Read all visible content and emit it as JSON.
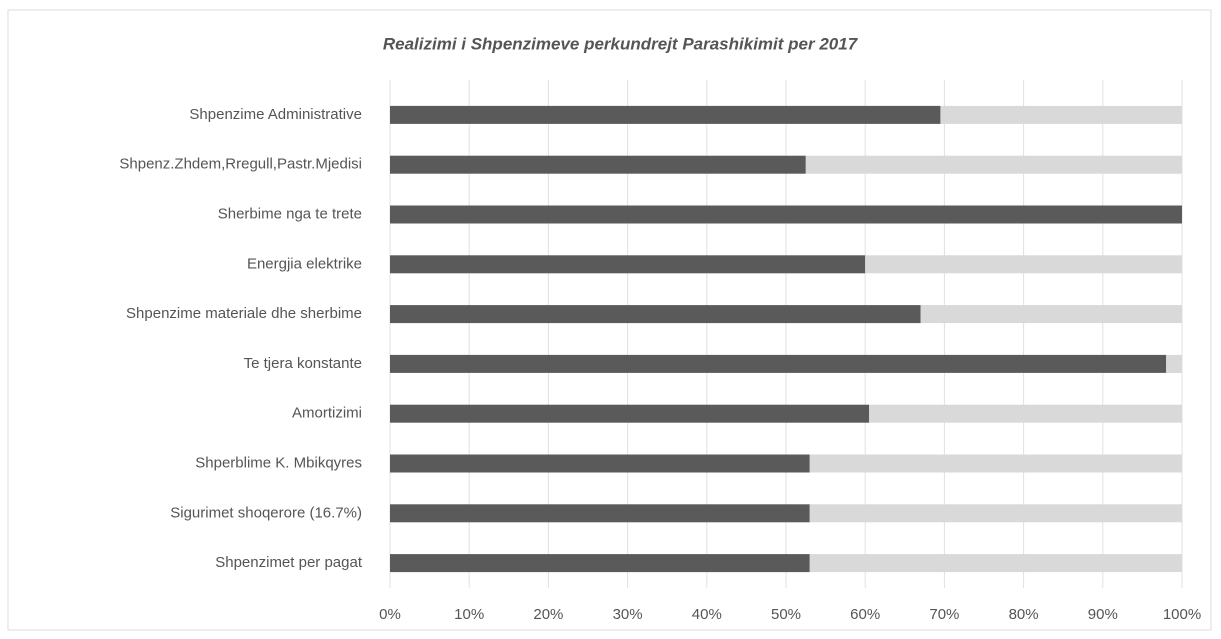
{
  "chart_data": {
    "type": "stacked_barh",
    "title": "Realizimi i  Shpenzimeve perkundrejt Parashikimit per 2017",
    "categories": [
      "Shpenzime Administrative",
      "Shpenz.Zhdem,Rregull,Pastr.Mjedisi",
      "Sherbime nga te trete",
      "Energjia elektrike",
      "Shpenzime materiale dhe sherbime",
      "Te tjera konstante",
      "Amortizimi",
      "Shperblime K. Mbikqyres",
      "Sigurimet shoqerore (16.7%)",
      "Shpenzimet per pagat"
    ],
    "series": [
      {
        "color": "#5a5a5a",
        "values": [
          69.5,
          52.5,
          100,
          60,
          67,
          98,
          60.5,
          53,
          53,
          53
        ]
      },
      {
        "color": "#d9d9d9",
        "values": [
          30.5,
          47.5,
          0,
          40,
          33,
          2,
          39.5,
          47,
          47,
          47
        ]
      }
    ],
    "xlim": [
      0,
      100
    ],
    "xticks": [
      {
        "value": 0,
        "label": "0%"
      },
      {
        "value": 10,
        "label": "10%"
      },
      {
        "value": 20,
        "label": "20%"
      },
      {
        "value": 30,
        "label": "30%"
      },
      {
        "value": 40,
        "label": "40%"
      },
      {
        "value": 50,
        "label": "50%"
      },
      {
        "value": 60,
        "label": "60%"
      },
      {
        "value": 70,
        "label": "70%"
      },
      {
        "value": 80,
        "label": "80%"
      },
      {
        "value": 90,
        "label": "90%"
      },
      {
        "value": 100,
        "label": "100%"
      }
    ],
    "grid": true
  }
}
